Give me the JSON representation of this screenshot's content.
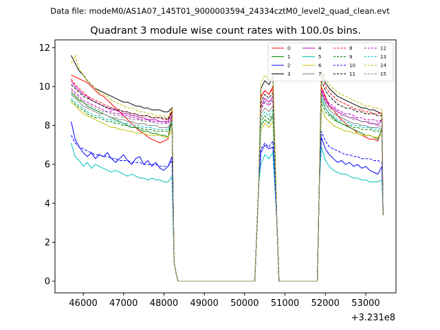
{
  "chart_data": {
    "type": "line",
    "suptitle": "Data file: modeM0/AS1A07_145T01_9000003594_24334cztM0_level2_quad_clean.evt",
    "title": "Quadrant 3 module wise count rates with 100.0s bins.",
    "xlabel": "",
    "ylabel": "",
    "x_offset_label": "+3.231e8",
    "xlim": [
      45300,
      53750
    ],
    "ylim": [
      -0.6,
      12.4
    ],
    "xticks": [
      46000,
      47000,
      48000,
      49000,
      50000,
      51000,
      52000,
      53000
    ],
    "xtick_labels": [
      "46000",
      "47000",
      "48000",
      "49000",
      "50000",
      "51000",
      "52000",
      "53000"
    ],
    "yticks": [
      0,
      2,
      4,
      6,
      8,
      10,
      12
    ],
    "ytick_labels": [
      "0",
      "2",
      "4",
      "6",
      "8",
      "10",
      "12"
    ],
    "legend_location": "upper right",
    "time_segments": [
      {
        "start": 45700,
        "end": 48200,
        "step": 100
      },
      {
        "start": 50400,
        "end": 50700,
        "step": 100
      },
      {
        "start": 51900,
        "end": 53400,
        "step": 100
      }
    ],
    "series": [
      {
        "name": "0",
        "color": "#ff0000",
        "dash": "solid",
        "seg1": [
          10.6,
          10.5,
          10.4,
          10.3,
          10.2,
          10.0,
          9.8,
          9.6,
          9.5,
          9.3,
          9.1,
          8.9,
          8.7,
          8.5,
          8.3,
          8.1,
          7.9,
          7.7,
          7.6,
          7.4,
          7.3,
          7.2,
          7.1,
          7.2,
          7.3,
          8.6
        ],
        "seg2": [
          9.5,
          9.8,
          9.6,
          10.0
        ],
        "seg3": [
          10.0,
          9.5,
          9.0,
          8.8,
          8.5,
          8.3,
          8.1,
          7.9,
          7.8,
          7.6,
          7.5,
          7.4,
          7.3,
          7.3,
          7.2,
          7.9
        ]
      },
      {
        "name": "1",
        "color": "#008000",
        "dash": "solid",
        "seg1": [
          9.7,
          9.5,
          9.3,
          9.2,
          9.0,
          8.9,
          8.8,
          8.7,
          8.6,
          8.5,
          8.4,
          8.3,
          8.2,
          8.1,
          8.0,
          7.9,
          7.9,
          7.8,
          7.7,
          7.7,
          7.6,
          7.6,
          7.5,
          7.5,
          7.4,
          8.2
        ],
        "seg2": [
          8.0,
          8.3,
          8.1,
          8.5
        ],
        "seg3": [
          9.4,
          8.9,
          8.6,
          8.4,
          8.2,
          8.1,
          8.0,
          7.9,
          7.8,
          7.7,
          7.6,
          7.5,
          7.5,
          7.4,
          7.3,
          7.8
        ]
      },
      {
        "name": "2",
        "color": "#0000ff",
        "dash": "solid",
        "seg1": [
          8.2,
          7.3,
          6.9,
          6.6,
          6.4,
          6.6,
          6.3,
          6.5,
          6.4,
          6.6,
          6.3,
          6.1,
          6.3,
          6.5,
          6.2,
          6.0,
          6.3,
          6.4,
          6.0,
          6.2,
          5.9,
          6.1,
          5.8,
          5.7,
          5.9,
          6.4
        ],
        "seg2": [
          6.6,
          7.0,
          6.8,
          6.9
        ],
        "seg3": [
          7.4,
          6.8,
          6.5,
          6.3,
          6.1,
          6.2,
          6.0,
          6.1,
          5.9,
          6.0,
          5.8,
          5.9,
          5.7,
          5.6,
          5.5,
          5.9
        ]
      },
      {
        "name": "3",
        "color": "#000000",
        "dash": "solid",
        "seg1": [
          11.6,
          11.2,
          10.8,
          10.6,
          10.3,
          10.1,
          9.9,
          9.8,
          9.7,
          9.6,
          9.5,
          9.4,
          9.3,
          9.2,
          9.2,
          9.1,
          9.0,
          9.0,
          8.9,
          8.9,
          8.8,
          8.8,
          8.8,
          8.7,
          8.7,
          8.9
        ],
        "seg2": [
          9.9,
          10.3,
          10.1,
          10.5
        ],
        "seg3": [
          10.8,
          10.2,
          9.9,
          9.7,
          9.5,
          9.4,
          9.3,
          9.2,
          9.1,
          9.0,
          8.9,
          8.9,
          8.8,
          8.8,
          8.7,
          8.6
        ]
      },
      {
        "name": "4",
        "color": "#bf00bf",
        "dash": "solid",
        "seg1": [
          10.3,
          10.0,
          9.8,
          9.6,
          9.5,
          9.3,
          9.2,
          9.1,
          9.0,
          8.9,
          8.8,
          8.8,
          8.7,
          8.6,
          8.6,
          8.5,
          8.5,
          8.4,
          8.4,
          8.3,
          8.3,
          8.3,
          8.2,
          8.2,
          8.2,
          8.7
        ],
        "seg2": [
          9.0,
          9.4,
          9.2,
          9.5
        ],
        "seg3": [
          9.8,
          9.3,
          9.0,
          8.9,
          8.7,
          8.6,
          8.5,
          8.4,
          8.4,
          8.3,
          8.2,
          8.2,
          8.1,
          8.1,
          8.0,
          8.3
        ]
      },
      {
        "name": "5",
        "color": "#00bfbf",
        "dash": "solid",
        "seg1": [
          7.1,
          6.4,
          6.2,
          5.9,
          6.1,
          5.8,
          6.0,
          5.9,
          5.8,
          5.7,
          5.6,
          5.7,
          5.6,
          5.5,
          5.4,
          5.5,
          5.4,
          5.3,
          5.3,
          5.2,
          5.3,
          5.2,
          5.2,
          5.1,
          5.1,
          5.4
        ],
        "seg2": [
          6.0,
          6.5,
          6.3,
          6.6
        ],
        "seg3": [
          6.9,
          6.2,
          5.9,
          5.7,
          5.6,
          5.5,
          5.5,
          5.4,
          5.3,
          5.3,
          5.2,
          5.2,
          5.1,
          5.1,
          5.1,
          5.2
        ]
      },
      {
        "name": "6",
        "color": "#bfbf00",
        "dash": "solid",
        "seg1": [
          9.2,
          9.0,
          8.8,
          8.6,
          8.5,
          8.4,
          8.3,
          8.2,
          8.1,
          8.0,
          7.9,
          7.9,
          7.8,
          7.8,
          7.7,
          7.7,
          7.6,
          7.6,
          7.6,
          7.5,
          7.5,
          7.5,
          7.5,
          7.4,
          7.4,
          7.8
        ],
        "seg2": [
          7.8,
          8.1,
          7.9,
          8.2
        ],
        "seg3": [
          8.9,
          8.4,
          8.2,
          8.0,
          7.9,
          7.8,
          7.7,
          7.7,
          7.6,
          7.6,
          7.5,
          7.5,
          7.5,
          7.4,
          7.4,
          7.5
        ]
      },
      {
        "name": "7",
        "color": "#808080",
        "dash": "solid",
        "seg1": [
          9.6,
          9.4,
          9.2,
          9.0,
          8.9,
          8.8,
          8.7,
          8.6,
          8.6,
          8.5,
          8.4,
          8.4,
          8.3,
          8.3,
          8.2,
          8.2,
          8.1,
          8.1,
          8.1,
          8.0,
          8.0,
          8.0,
          7.9,
          7.9,
          7.9,
          8.3
        ],
        "seg2": [
          8.6,
          8.9,
          8.7,
          9.0
        ],
        "seg3": [
          9.6,
          9.1,
          8.8,
          8.6,
          8.5,
          8.4,
          8.3,
          8.2,
          8.1,
          8.1,
          8.0,
          8.0,
          7.9,
          7.9,
          7.9,
          8.0
        ]
      },
      {
        "name": "8",
        "color": "#ff0000",
        "dash": "dashed",
        "seg1": [
          10.4,
          10.1,
          9.9,
          9.7,
          9.5,
          9.4,
          9.3,
          9.2,
          9.1,
          9.0,
          8.9,
          8.9,
          8.8,
          8.7,
          8.7,
          8.6,
          8.6,
          8.5,
          8.5,
          8.5,
          8.4,
          8.4,
          8.4,
          8.3,
          8.3,
          8.8
        ],
        "seg2": [
          9.4,
          9.8,
          9.6,
          9.9
        ],
        "seg3": [
          10.6,
          10.0,
          9.7,
          9.5,
          9.3,
          9.2,
          9.1,
          9.0,
          8.9,
          8.8,
          8.8,
          8.7,
          8.7,
          8.6,
          8.6,
          8.7
        ]
      },
      {
        "name": "9",
        "color": "#008000",
        "dash": "dashed",
        "seg1": [
          9.3,
          9.1,
          8.9,
          8.8,
          8.6,
          8.5,
          8.4,
          8.4,
          8.3,
          8.2,
          8.2,
          8.1,
          8.1,
          8.0,
          8.0,
          7.9,
          7.9,
          7.9,
          7.8,
          7.8,
          7.8,
          7.7,
          7.7,
          7.7,
          7.7,
          8.1
        ],
        "seg2": [
          8.2,
          8.5,
          8.3,
          8.6
        ],
        "seg3": [
          9.2,
          8.7,
          8.5,
          8.3,
          8.2,
          8.1,
          8.0,
          8.0,
          7.9,
          7.9,
          7.8,
          7.8,
          7.8,
          7.7,
          7.7,
          7.8
        ]
      },
      {
        "name": "10",
        "color": "#0000ff",
        "dash": "dashed",
        "seg1": [
          7.5,
          7.1,
          6.9,
          6.8,
          6.7,
          6.6,
          6.5,
          6.5,
          6.4,
          6.4,
          6.3,
          6.3,
          6.2,
          6.2,
          6.2,
          6.1,
          6.1,
          6.1,
          6.0,
          6.0,
          6.0,
          6.0,
          5.9,
          5.9,
          5.9,
          6.2
        ],
        "seg2": [
          6.8,
          7.1,
          6.9,
          7.2
        ],
        "seg3": [
          7.7,
          7.2,
          6.9,
          6.8,
          6.7,
          6.6,
          6.5,
          6.5,
          6.4,
          6.4,
          6.3,
          6.3,
          6.3,
          6.2,
          6.2,
          6.1
        ]
      },
      {
        "name": "11",
        "color": "#000000",
        "dash": "dashed",
        "seg1": [
          10.1,
          9.9,
          9.7,
          9.5,
          9.4,
          9.3,
          9.2,
          9.1,
          9.0,
          8.9,
          8.9,
          8.8,
          8.8,
          8.7,
          8.7,
          8.6,
          8.6,
          8.5,
          8.5,
          8.5,
          8.4,
          8.4,
          8.4,
          8.4,
          8.3,
          8.7
        ],
        "seg2": [
          9.2,
          9.6,
          9.4,
          9.7
        ],
        "seg3": [
          10.3,
          9.8,
          9.5,
          9.3,
          9.1,
          9.0,
          8.9,
          8.9,
          8.8,
          8.7,
          8.7,
          8.6,
          8.6,
          8.6,
          8.5,
          8.5
        ]
      },
      {
        "name": "12",
        "color": "#bf00bf",
        "dash": "dashed",
        "seg1": [
          9.9,
          9.7,
          9.5,
          9.3,
          9.2,
          9.1,
          9.0,
          8.9,
          8.8,
          8.7,
          8.7,
          8.6,
          8.6,
          8.5,
          8.5,
          8.4,
          8.4,
          8.3,
          8.3,
          8.3,
          8.2,
          8.2,
          8.2,
          8.2,
          8.1,
          8.5
        ],
        "seg2": [
          8.8,
          9.2,
          9.0,
          9.3
        ],
        "seg3": [
          9.9,
          9.4,
          9.1,
          9.0,
          8.8,
          8.7,
          8.6,
          8.6,
          8.5,
          8.4,
          8.4,
          8.3,
          8.3,
          8.3,
          8.2,
          8.3
        ]
      },
      {
        "name": "13",
        "color": "#00bfbf",
        "dash": "dashed",
        "seg1": [
          9.4,
          9.2,
          9.0,
          8.9,
          8.7,
          8.6,
          8.5,
          8.5,
          8.4,
          8.3,
          8.3,
          8.2,
          8.2,
          8.1,
          8.1,
          8.0,
          8.0,
          8.0,
          7.9,
          7.9,
          7.9,
          7.8,
          7.8,
          7.8,
          7.8,
          8.2
        ],
        "seg2": [
          8.4,
          8.7,
          8.5,
          8.8
        ],
        "seg3": [
          9.4,
          8.9,
          8.6,
          8.5,
          8.3,
          8.2,
          8.2,
          8.1,
          8.0,
          8.0,
          7.9,
          7.9,
          7.9,
          7.8,
          7.8,
          7.9
        ]
      },
      {
        "name": "14",
        "color": "#bfbf00",
        "dash": "dashed",
        "seg1": [
          11.2,
          11.6,
          10.9,
          10.6,
          10.3,
          10.1,
          9.9,
          9.7,
          9.6,
          9.5,
          9.3,
          9.2,
          9.1,
          9.0,
          8.9,
          8.9,
          8.8,
          8.7,
          8.7,
          8.6,
          8.6,
          8.5,
          8.5,
          8.5,
          8.4,
          8.9
        ],
        "seg2": [
          10.2,
          10.6,
          10.3,
          10.7
        ],
        "seg3": [
          10.9,
          10.4,
          10.1,
          9.9,
          9.7,
          9.6,
          9.5,
          9.4,
          9.3,
          9.2,
          9.1,
          9.0,
          9.0,
          8.9,
          8.9,
          8.8
        ]
      },
      {
        "name": "15",
        "color": "#808080",
        "dash": "dashed",
        "seg1": [
          9.8,
          9.6,
          9.4,
          9.2,
          9.1,
          9.0,
          8.9,
          8.8,
          8.7,
          8.7,
          8.6,
          8.5,
          8.5,
          8.4,
          8.4,
          8.3,
          8.3,
          8.3,
          8.2,
          8.2,
          8.2,
          8.1,
          8.1,
          8.1,
          8.1,
          8.4
        ],
        "seg2": [
          8.9,
          9.3,
          9.1,
          9.4
        ],
        "seg3": [
          9.7,
          9.2,
          8.9,
          8.8,
          8.6,
          8.5,
          8.5,
          8.4,
          8.3,
          8.3,
          8.2,
          8.2,
          8.2,
          8.1,
          8.1,
          8.2
        ]
      }
    ]
  }
}
